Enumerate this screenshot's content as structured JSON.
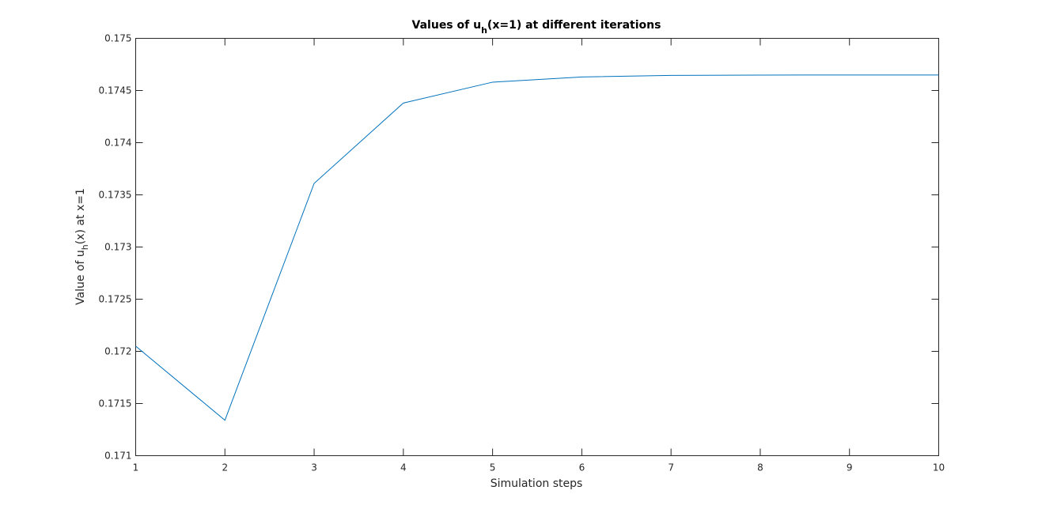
{
  "chart_data": {
    "type": "line",
    "title": {
      "prefix": "Values of u",
      "subscript": "h",
      "suffix": "(x=1) at different iterations"
    },
    "xlabel": "Simulation steps",
    "ylabel": {
      "prefix": "Value of u",
      "subscript": "h",
      "suffix": "(x) at x=1"
    },
    "xlim": [
      1,
      10
    ],
    "ylim": [
      0.171,
      0.175
    ],
    "xticks": [
      1,
      2,
      3,
      4,
      5,
      6,
      7,
      8,
      9,
      10
    ],
    "xtick_labels": [
      "1",
      "2",
      "3",
      "4",
      "5",
      "6",
      "7",
      "8",
      "9",
      "10"
    ],
    "yticks": [
      0.171,
      0.1715,
      0.172,
      0.1725,
      0.173,
      0.1735,
      0.174,
      0.1745,
      0.175
    ],
    "ytick_labels": [
      "0.171",
      "0.1715",
      "0.172",
      "0.1725",
      "0.173",
      "0.1735",
      "0.174",
      "0.1745",
      "0.175"
    ],
    "grid": false,
    "line_color": "#0072bd",
    "axis_color": "#262626",
    "series": [
      {
        "x": [
          1,
          2,
          3,
          4,
          5,
          6,
          7,
          8,
          9,
          10
        ],
        "values": [
          0.17205,
          0.17134,
          0.17361,
          0.17438,
          0.17458,
          0.17463,
          0.174645,
          0.174648,
          0.174649,
          0.174649
        ]
      }
    ]
  }
}
